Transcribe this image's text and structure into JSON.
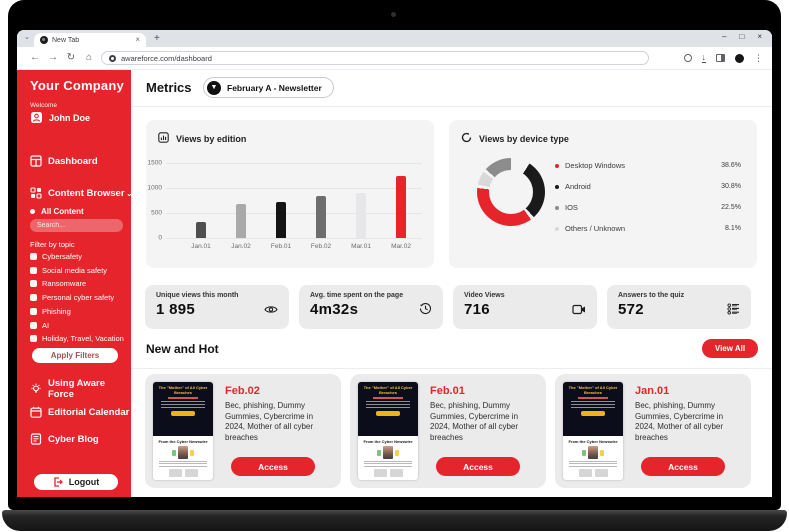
{
  "colors": {
    "brand_red": "#e5242b",
    "card_gray": "#ebebec",
    "chart_card_gray": "#f4f4f5",
    "thumb_dark_navy": "#0b0e1a",
    "thumb_yellow": "#f5c33b"
  },
  "browser": {
    "tab_title": "New Tab",
    "url": "awareforce.com/dashboard",
    "window_controls": {
      "minimize": "–",
      "maximize": "□",
      "close": "×"
    }
  },
  "sidebar": {
    "company": "Your Company",
    "welcome": "Welcome",
    "user": "John Doe",
    "nav_dashboard": "Dashboard",
    "nav_content_browser": "Content Browser",
    "all_content": "All Content",
    "search_placeholder": "Search...",
    "filter_label": "Filter by topic",
    "topics": [
      "Cybersafety",
      "Social media safety",
      "Ransomware",
      "Personal cyber safety",
      "Phishing",
      "AI",
      "Holiday, Travel, Vacation"
    ],
    "apply_button": "Apply Filters",
    "link_using": "Using Aware Force",
    "link_calendar": "Editorial Calendar",
    "link_blog": "Cyber Blog",
    "logout": "Logout"
  },
  "metrics": {
    "title": "Metrics",
    "edition_selector": "February A - Newsletter"
  },
  "chart_data": [
    {
      "type": "bar",
      "title": "Views by edition",
      "categories": [
        "Jan.01",
        "Jan.02",
        "Feb.01",
        "Feb.02",
        "Mar.01",
        "Mar.02"
      ],
      "values": [
        330,
        690,
        720,
        835,
        900,
        1240
      ],
      "bar_colors": [
        "#4f4f4f",
        "#a9a9a9",
        "#141414",
        "#6e6e6e",
        "#e7e7e9",
        "#e5242b"
      ],
      "xlabel": "",
      "ylabel": "",
      "ylim": [
        0,
        1500
      ],
      "yticks": [
        0,
        500,
        1000,
        1500
      ],
      "ytick_labels_top_down": [
        "1500",
        "1000",
        "500",
        "0"
      ],
      "grid": true,
      "legend": "none"
    },
    {
      "type": "donut",
      "title": "Views by device type",
      "slices": [
        {
          "label": "Desktop Windows",
          "value": 38.6,
          "pct_label": "38.6%",
          "color": "#e5242b"
        },
        {
          "label": "Android",
          "value": 30.8,
          "pct_label": "30.8%",
          "color": "#1a1a1a"
        },
        {
          "label": "IOS",
          "value": 22.5,
          "pct_label": "22.5%",
          "color": "#8c8c8c"
        },
        {
          "label": "Others / Unknown",
          "value": 8.1,
          "pct_label": "8.1%",
          "color": "#d9d9d9"
        }
      ],
      "legend_position": "right",
      "start_deg": 30,
      "draw_order": [
        1,
        0,
        3,
        2
      ],
      "gap_deg": 6
    }
  ],
  "stats": [
    {
      "label": "Unique views this month",
      "value": "1 895",
      "icon": "eye-icon"
    },
    {
      "label": "Avg. time spent on the page",
      "value": "4m32s",
      "icon": "history-clock-icon"
    },
    {
      "label": "Video Views",
      "value": "716",
      "icon": "video-camera-icon"
    },
    {
      "label": "Answers to the quiz",
      "value": "572",
      "icon": "quiz-list-icon"
    }
  ],
  "new_and_hot": {
    "title": "New and Hot",
    "view_all": "View All",
    "cards": [
      {
        "date": "Feb.02",
        "description": "Bec, phishing, Dummy Gummies, Cybercrime in 2024, Mother of all cyber breaches",
        "access": "Access",
        "thumb_headline": "The \"Mother\" of All Cyber Breaches",
        "thumb_section": "From the Cyber Newswire"
      },
      {
        "date": "Feb.01",
        "description": "Bec, phishing, Dummy Gummies, Cybercrime in 2024, Mother of all cyber breaches",
        "access": "Access",
        "thumb_headline": "The \"Mother\" of All Cyber Breaches",
        "thumb_section": "From the Cyber Newswire"
      },
      {
        "date": "Jan.01",
        "description": "Bec, phishing, Dummy Gummies, Cybercrime in 2024, Mother of all cyber breaches",
        "access": "Access",
        "thumb_headline": "The \"Mother\" of All Cyber Breaches",
        "thumb_section": "From the Cyber Newswire"
      }
    ]
  }
}
